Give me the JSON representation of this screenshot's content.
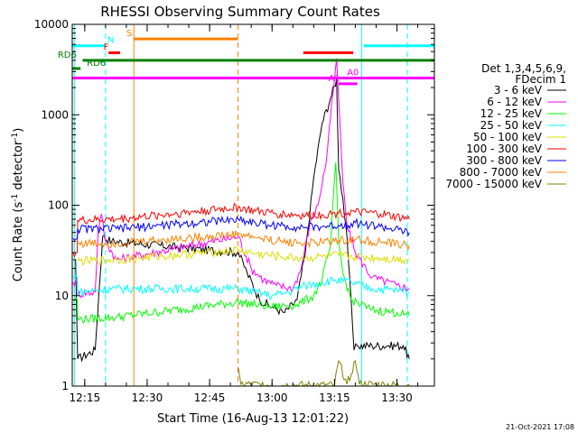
{
  "chart_data": {
    "type": "line",
    "title": "RHESSI Observing Summary Count Rates",
    "xlabel": "Start Time (16-Aug-13 12:01:22)",
    "ylabel_main": "Count Rate (s",
    "ylabel_sup1": "-1",
    "ylabel_mid": " detector",
    "ylabel_sup2": "-1",
    "ylabel_end": ")",
    "y_scale": "log",
    "ylim": [
      1,
      10000
    ],
    "xlim_minutes": [
      12.0,
      99.0
    ],
    "x_ticks": [
      {
        "t": 15,
        "label": "12:15"
      },
      {
        "t": 30,
        "label": "12:30"
      },
      {
        "t": 45,
        "label": "12:45"
      },
      {
        "t": 60,
        "label": "13:00"
      },
      {
        "t": 75,
        "label": "13:15"
      },
      {
        "t": 90,
        "label": "13:30"
      }
    ],
    "y_ticks": [
      {
        "v": 1,
        "label": "1"
      },
      {
        "v": 10,
        "label": "10"
      },
      {
        "v": 100,
        "label": "100"
      },
      {
        "v": 1000,
        "label": "1000"
      },
      {
        "v": 10000,
        "label": "10000"
      }
    ],
    "legend_header": [
      "Det 1,3,4,5,6,9,",
      "FDecim 1"
    ],
    "series": [
      {
        "name": "3 - 6 keV",
        "color": "#000000",
        "points": [
          [
            12.2,
            25
          ],
          [
            12.8,
            25
          ],
          [
            13.3,
            2
          ],
          [
            17.5,
            2.5
          ],
          [
            19.3,
            45
          ],
          [
            21.5,
            40
          ],
          [
            51.9,
            30
          ],
          [
            54,
            18
          ],
          [
            57,
            9
          ],
          [
            60,
            7.5
          ],
          [
            63,
            6.5
          ],
          [
            66,
            9
          ],
          [
            68,
            30
          ],
          [
            70,
            200
          ],
          [
            72,
            800
          ],
          [
            74,
            1500
          ],
          [
            75.5,
            2500
          ],
          [
            76,
            250
          ],
          [
            77,
            120
          ],
          [
            78,
            45
          ],
          [
            79.7,
            2.5
          ],
          [
            80.5,
            2.8
          ],
          [
            84,
            2.8
          ],
          [
            88,
            2.8
          ],
          [
            91.5,
            2.8
          ],
          [
            93,
            2
          ]
        ]
      },
      {
        "name": "6 - 12 keV",
        "color": "#ff00ff",
        "points": [
          [
            12.2,
            14
          ],
          [
            13.2,
            14
          ],
          [
            13.3,
            10.5
          ],
          [
            17.5,
            11
          ],
          [
            18.2,
            50
          ],
          [
            19,
            80
          ],
          [
            20,
            40
          ],
          [
            22.6,
            25
          ],
          [
            51.9,
            45
          ],
          [
            55,
            20
          ],
          [
            58,
            15
          ],
          [
            61,
            13
          ],
          [
            65,
            12
          ],
          [
            67,
            20
          ],
          [
            69,
            60
          ],
          [
            71,
            100
          ],
          [
            73,
            300
          ],
          [
            74,
            900
          ],
          [
            75,
            2500
          ],
          [
            75.5,
            4200
          ],
          [
            76,
            1500
          ],
          [
            77,
            180
          ],
          [
            78,
            60
          ],
          [
            80,
            30
          ],
          [
            84,
            16
          ],
          [
            90,
            13
          ],
          [
            93,
            12
          ]
        ]
      },
      {
        "name": "12 - 25 keV",
        "color": "#00ff00",
        "points": [
          [
            12.2,
            9
          ],
          [
            13.2,
            9
          ],
          [
            13.3,
            5.5
          ],
          [
            22.6,
            5.8
          ],
          [
            51.9,
            8.5
          ],
          [
            56,
            8
          ],
          [
            60,
            7.5
          ],
          [
            66,
            8
          ],
          [
            70,
            10
          ],
          [
            72,
            15
          ],
          [
            74,
            35
          ],
          [
            75.3,
            300
          ],
          [
            76,
            40
          ],
          [
            77,
            18
          ],
          [
            79,
            9
          ],
          [
            84,
            7
          ],
          [
            90,
            6.5
          ],
          [
            93,
            6
          ]
        ]
      },
      {
        "name": "25 - 50 keV",
        "color": "#00ffff",
        "points": [
          [
            12.2,
            16
          ],
          [
            13.2,
            16
          ],
          [
            13.3,
            11
          ],
          [
            22.6,
            12
          ],
          [
            51.9,
            12
          ],
          [
            56,
            11
          ],
          [
            60,
            10
          ],
          [
            64,
            11
          ],
          [
            68,
            13
          ],
          [
            72,
            14
          ],
          [
            75,
            15
          ],
          [
            79,
            14
          ],
          [
            84,
            12
          ],
          [
            90,
            11.5
          ],
          [
            93,
            11
          ]
        ]
      },
      {
        "name": "50 - 100 keV",
        "color": "#dddd00",
        "points": [
          [
            13.3,
            24
          ],
          [
            22.6,
            25
          ],
          [
            51.9,
            32
          ],
          [
            56,
            29
          ],
          [
            62,
            27
          ],
          [
            68,
            26
          ],
          [
            72,
            27
          ],
          [
            76,
            28
          ],
          [
            80,
            27
          ],
          [
            86,
            26
          ],
          [
            93,
            25
          ]
        ]
      },
      {
        "name": "100 - 300 keV",
        "color": "#ff0000",
        "points": [
          [
            12.2,
            30
          ],
          [
            13.2,
            30
          ],
          [
            13.3,
            68
          ],
          [
            22.6,
            70
          ],
          [
            51.9,
            95
          ],
          [
            56,
            86
          ],
          [
            62,
            80
          ],
          [
            68,
            77
          ],
          [
            72,
            79
          ],
          [
            76,
            82
          ],
          [
            80,
            84
          ],
          [
            86,
            80
          ],
          [
            93,
            70
          ]
        ]
      },
      {
        "name": "300 - 800 keV",
        "color": "#0000ff",
        "points": [
          [
            12.2,
            43
          ],
          [
            13.2,
            43
          ],
          [
            13.3,
            55
          ],
          [
            22.6,
            55
          ],
          [
            51.9,
            70
          ],
          [
            56,
            64
          ],
          [
            62,
            59
          ],
          [
            68,
            57
          ],
          [
            72,
            58
          ],
          [
            76,
            60
          ],
          [
            80,
            64
          ],
          [
            86,
            58
          ],
          [
            93,
            50
          ]
        ]
      },
      {
        "name": "800 - 7000 keV",
        "color": "#ff8000",
        "points": [
          [
            13.3,
            38
          ],
          [
            22.6,
            38
          ],
          [
            51.9,
            48
          ],
          [
            56,
            44
          ],
          [
            62,
            40
          ],
          [
            68,
            38
          ],
          [
            72,
            39
          ],
          [
            76,
            41
          ],
          [
            80,
            42
          ],
          [
            86,
            39
          ],
          [
            93,
            36
          ]
        ]
      },
      {
        "name": "7000 - 15000 keV",
        "color": "#808000",
        "points": [
          [
            51.9,
            1.6
          ],
          [
            52.5,
            1.05
          ],
          [
            60,
            1.02
          ],
          [
            75,
            1.02
          ],
          [
            76,
            1.9
          ],
          [
            78,
            1.05
          ],
          [
            80,
            1.9
          ],
          [
            81,
            1.05
          ],
          [
            93,
            1.02
          ]
        ]
      }
    ],
    "state_bars": [
      {
        "label": "N",
        "color": "#00ffff",
        "y": 5800,
        "from": 12.0,
        "to": 20.0,
        "label_t": 20.5
      },
      {
        "label": "S",
        "color": "#ff8000",
        "y": 6900,
        "from": 26.8,
        "to": 51.8,
        "label_t": 25.0
      },
      {
        "label": "F",
        "color": "#ff0000",
        "y": 4850,
        "from": 20.7,
        "to": 23.5,
        "label_t": 19.5
      },
      {
        "label": "",
        "color": "#ff0000",
        "y": 4850,
        "from": 67.5,
        "to": 79.5,
        "label_t": 67.5
      },
      {
        "label": "",
        "color": "#00ffff",
        "y": 5800,
        "from": 82.0,
        "to": 99.0,
        "label_t": 82.0
      },
      {
        "label": "RD6",
        "color": "#008000",
        "y": 4000,
        "from": 14.5,
        "to": 99.0,
        "label_t": 8.5
      },
      {
        "label": "RD6",
        "color": "#008000",
        "y": 3250,
        "from": 12.0,
        "to": 14.0,
        "label_t": 15.5
      },
      {
        "label": "A1",
        "color": "#ff00ff",
        "y": 2200,
        "from": 76.0,
        "to": 80.5,
        "label_t": 73.5
      },
      {
        "label": "A0",
        "color": "#ff00ff",
        "y": 2550,
        "from": 12.0,
        "to": 99.0,
        "label_t": 78.0
      }
    ],
    "vlines": [
      {
        "t": 12.5,
        "color": "#00ffff",
        "style": "solid"
      },
      {
        "t": 20.0,
        "color": "#00ffff",
        "style": "dash"
      },
      {
        "t": 26.8,
        "color": "#ff8000",
        "style": "solid"
      },
      {
        "t": 51.8,
        "color": "#ff8000",
        "style": "dash"
      },
      {
        "t": 81.5,
        "color": "#00ffff",
        "style": "solid"
      },
      {
        "t": 92.5,
        "color": "#00ffff",
        "style": "dash"
      }
    ],
    "footer_date": "21-Oct-2021 17:08"
  }
}
